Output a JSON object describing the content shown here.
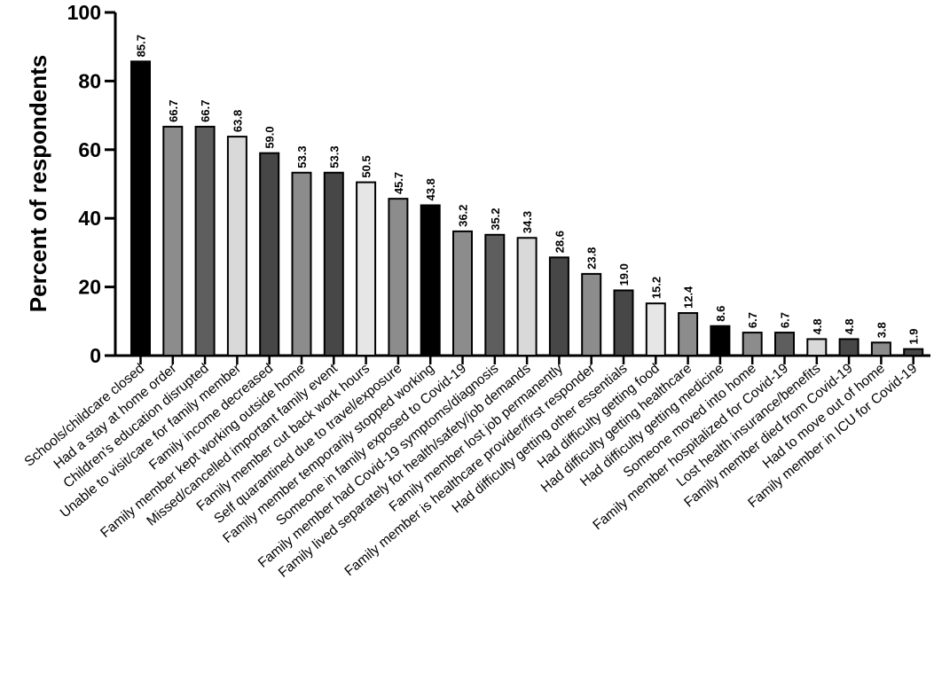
{
  "chart_data": {
    "type": "bar",
    "title": "",
    "xlabel": "",
    "ylabel": "Percent of respondents",
    "ylim": [
      0,
      100
    ],
    "yticks": [
      0,
      20,
      40,
      60,
      80,
      100
    ],
    "grid": false,
    "legend": "none",
    "categories": [
      "Schools/childcare closed",
      "Had a stay at home order",
      "Children's education disrupted",
      "Unable to visit/care for family member",
      "Family income decreased",
      "Family member kept working outside home",
      "Missed/cancelled important family event",
      "Family member cut back work hours",
      "Self quarantined due to travel/exposure",
      "Family member temporarily stopped working",
      "Someone in family exposed to Covid-19",
      "Family member had Covid-19 symptoms/diagnosis",
      "Family lived separately for health/safety/job demands",
      "Family member lost job permanently",
      "Family member is healthcare provider/first responder",
      "Had difficulty getting other essentials",
      "Had difficulty getting food",
      "Had difficulty getting healthcare",
      "Had difficulty getting medicine",
      "Someone moved into home",
      "Family member hospitalized for Covid-19",
      "Lost health insurance/benefits",
      "Family member died from Covid-19",
      "Had to move out of home",
      "Family member in ICU for Covid-19"
    ],
    "values": [
      85.7,
      66.7,
      66.7,
      63.8,
      59.0,
      53.3,
      53.3,
      50.5,
      45.7,
      43.8,
      36.2,
      35.2,
      34.3,
      28.6,
      23.8,
      19.0,
      15.2,
      12.4,
      8.6,
      6.7,
      6.7,
      4.8,
      4.8,
      3.8,
      1.9
    ],
    "data_labels": [
      "85.7",
      "66.7",
      "66.7",
      "63.8",
      "59.0",
      "53.3",
      "53.3",
      "50.5",
      "45.7",
      "43.8",
      "36.2",
      "35.2",
      "34.3",
      "28.6",
      "23.8",
      "19.0",
      "15.2",
      "12.4",
      "8.6",
      "6.7",
      "6.7",
      "4.8",
      "4.8",
      "3.8",
      "1.9"
    ],
    "bar_colors": [
      "#000000",
      "#8c8c8c",
      "#5e5e5e",
      "#d9d9d9",
      "#474747",
      "#8c8c8c",
      "#474747",
      "#e6e6e6",
      "#8c8c8c",
      "#000000",
      "#8c8c8c",
      "#5e5e5e",
      "#d9d9d9",
      "#474747",
      "#8c8c8c",
      "#474747",
      "#e6e6e6",
      "#8c8c8c",
      "#000000",
      "#8c8c8c",
      "#5e5e5e",
      "#d9d9d9",
      "#474747",
      "#8c8c8c",
      "#474747"
    ]
  }
}
